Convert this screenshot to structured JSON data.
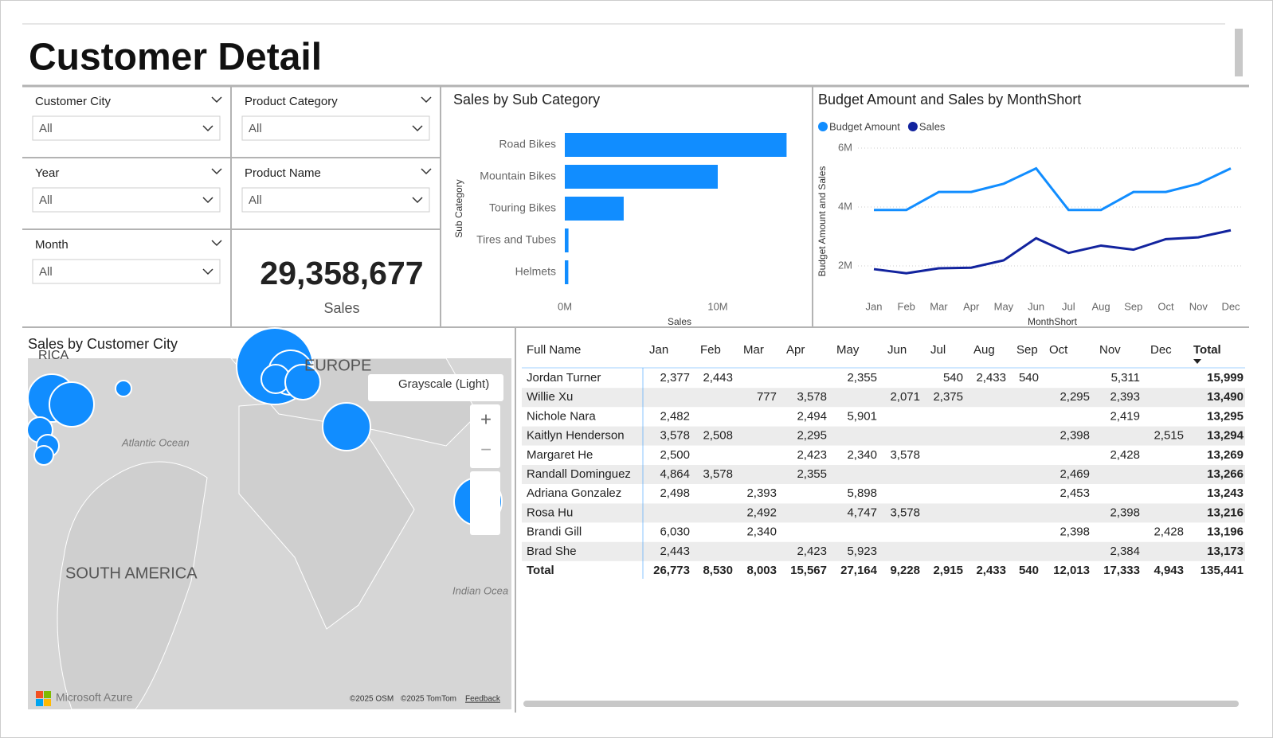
{
  "title": "Customer Detail",
  "slicers": [
    {
      "label": "Customer City",
      "value": "All"
    },
    {
      "label": "Product Category",
      "value": "All"
    },
    {
      "label": "Year",
      "value": "All"
    },
    {
      "label": "Product Name",
      "value": "All"
    },
    {
      "label": "Month",
      "value": "All"
    }
  ],
  "card": {
    "value": "29,358,677",
    "label": "Sales"
  },
  "chart_data": [
    {
      "type": "bar",
      "orientation": "horizontal",
      "title": "Sales by Sub Category",
      "x_label": "Sales",
      "y_label": "Sub Category",
      "categories": [
        "Road Bikes",
        "Mountain Bikes",
        "Touring Bikes",
        "Tires and Tubes",
        "Helmets"
      ],
      "values": [
        14500000,
        10000000,
        3850000,
        240000,
        230000
      ],
      "color": "#118dff",
      "xlim": [
        0,
        15000000
      ],
      "xticks": [
        {
          "value": 0,
          "label": "0M"
        },
        {
          "value": 10000000,
          "label": "10M"
        }
      ]
    },
    {
      "type": "line",
      "title": "Budget Amount and Sales by MonthShort",
      "x_label": "MonthShort",
      "y_label": "Budget Amount and Sales",
      "categories": [
        "Jan",
        "Feb",
        "Mar",
        "Apr",
        "May",
        "Jun",
        "Jul",
        "Aug",
        "Sep",
        "Oct",
        "Nov",
        "Dec"
      ],
      "series": [
        {
          "name": "Budget Amount",
          "color": "#118dff",
          "values": [
            3900000,
            3900000,
            4510000,
            4510000,
            4790000,
            5310000,
            3900000,
            3900000,
            4510000,
            4510000,
            4790000,
            5310000
          ]
        },
        {
          "name": "Sales",
          "color": "#12239e",
          "values": [
            1890000,
            1750000,
            1920000,
            1940000,
            2190000,
            2940000,
            2440000,
            2690000,
            2550000,
            2910000,
            2970000,
            3210000
          ]
        }
      ],
      "ylim": [
        1000000,
        6000000
      ],
      "yticks": [
        {
          "value": 2000000,
          "label": "2M"
        },
        {
          "value": 4000000,
          "label": "4M"
        },
        {
          "value": 6000000,
          "label": "6M"
        }
      ],
      "grid": true,
      "legend": "top-left"
    }
  ],
  "map": {
    "title": "Sales by Customer City",
    "labels": [
      "RICA",
      "EUROPE",
      "Atlantic Ocean",
      "SOUTH AMERICA",
      "Indian Ocea"
    ],
    "style": "Grayscale (Light)",
    "brand": "Microsoft Azure",
    "credits": [
      "©2025 OSM",
      "©2025 TomTom"
    ],
    "feedback": "Feedback"
  },
  "table": {
    "columns": [
      "Full Name",
      "Jan",
      "Feb",
      "Mar",
      "Apr",
      "May",
      "Jun",
      "Jul",
      "Aug",
      "Sep",
      "Oct",
      "Nov",
      "Dec",
      "Total"
    ],
    "rows": [
      [
        "Jordan Turner",
        "2,377",
        "2,443",
        null,
        null,
        "2,355",
        null,
        "540",
        "2,433",
        "540",
        null,
        "5,311",
        null,
        "15,999"
      ],
      [
        "Willie Xu",
        null,
        null,
        "777",
        "3,578",
        null,
        "2,071",
        "2,375",
        null,
        null,
        "2,295",
        "2,393",
        null,
        "13,490"
      ],
      [
        "Nichole Nara",
        "2,482",
        null,
        null,
        "2,494",
        "5,901",
        null,
        null,
        null,
        null,
        null,
        "2,419",
        null,
        "13,295"
      ],
      [
        "Kaitlyn Henderson",
        "3,578",
        "2,508",
        null,
        "2,295",
        null,
        null,
        null,
        null,
        null,
        "2,398",
        null,
        "2,515",
        "13,294"
      ],
      [
        "Margaret He",
        "2,500",
        null,
        null,
        "2,423",
        "2,340",
        "3,578",
        null,
        null,
        null,
        null,
        "2,428",
        null,
        "13,269"
      ],
      [
        "Randall Dominguez",
        "4,864",
        "3,578",
        null,
        "2,355",
        null,
        null,
        null,
        null,
        null,
        "2,469",
        null,
        null,
        "13,266"
      ],
      [
        "Adriana Gonzalez",
        "2,498",
        null,
        "2,393",
        null,
        "5,898",
        null,
        null,
        null,
        null,
        "2,453",
        null,
        null,
        "13,243"
      ],
      [
        "Rosa Hu",
        null,
        null,
        "2,492",
        null,
        "4,747",
        "3,578",
        null,
        null,
        null,
        null,
        "2,398",
        null,
        "13,216"
      ],
      [
        "Brandi Gill",
        "6,030",
        null,
        "2,340",
        null,
        null,
        null,
        null,
        null,
        null,
        "2,398",
        null,
        "2,428",
        "13,196"
      ],
      [
        "Brad She",
        "2,443",
        null,
        null,
        "2,423",
        "5,923",
        null,
        null,
        null,
        null,
        null,
        "2,384",
        null,
        "13,173"
      ]
    ],
    "total": [
      "Total",
      "26,773",
      "8,530",
      "8,003",
      "15,567",
      "27,164",
      "9,228",
      "2,915",
      "2,433",
      "540",
      "12,013",
      "17,333",
      "4,943",
      "135,441"
    ]
  }
}
